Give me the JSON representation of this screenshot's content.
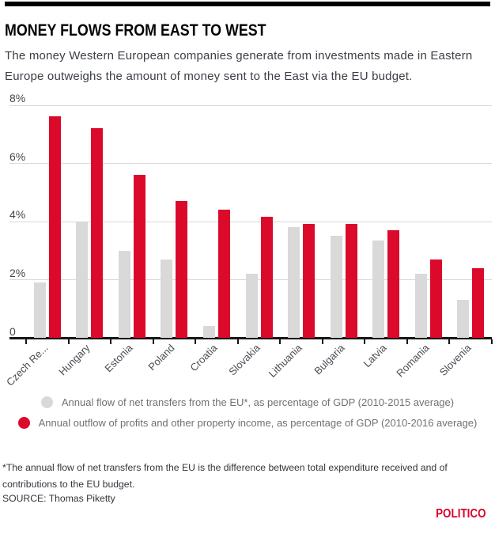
{
  "header": {
    "title": "MONEY FLOWS FROM EAST TO WEST",
    "subtitle_line1": "The money Western European companies generate from investments made in Eastern",
    "subtitle_line2": "Europe outweighs the amount of money sent to the East via the EU budget."
  },
  "chart_data": {
    "type": "bar",
    "categories": [
      "Czech Re...",
      "Hungary",
      "Estonia",
      "Poland",
      "Croatia",
      "Slovakia",
      "Lithuania",
      "Bulgaria",
      "Latvia",
      "Romania",
      "Slovenia"
    ],
    "series": [
      {
        "name": "Annual flow of net transfers from the EU*, as percentage of GDP (2010-2015 average)",
        "color": "#d9d9d9",
        "values": [
          1.9,
          4.0,
          3.0,
          2.7,
          0.4,
          2.2,
          3.8,
          3.5,
          3.35,
          2.2,
          1.3
        ]
      },
      {
        "name": "Annual outflow of profits and other property income, as percentage of GDP (2010-2016 average)",
        "color": "#db0a2b",
        "values": [
          7.6,
          7.2,
          5.6,
          4.7,
          4.4,
          4.15,
          3.9,
          3.9,
          3.7,
          2.7,
          2.4
        ]
      }
    ],
    "ylim": [
      0,
      8
    ],
    "yticks": [
      {
        "value": 0,
        "label": "0"
      },
      {
        "value": 2,
        "label": "2%"
      },
      {
        "value": 4,
        "label": "4%"
      },
      {
        "value": 6,
        "label": "6%"
      },
      {
        "value": 8,
        "label": "8%"
      }
    ],
    "grid": true,
    "legend_position": "bottom"
  },
  "footer": {
    "note_line1": "*The annual flow of net transfers from the EU is the difference between total expenditure received and of",
    "note_line2": "contributions to the EU budget.",
    "source": "SOURCE: Thomas Piketty",
    "brand": "POLITICO"
  }
}
